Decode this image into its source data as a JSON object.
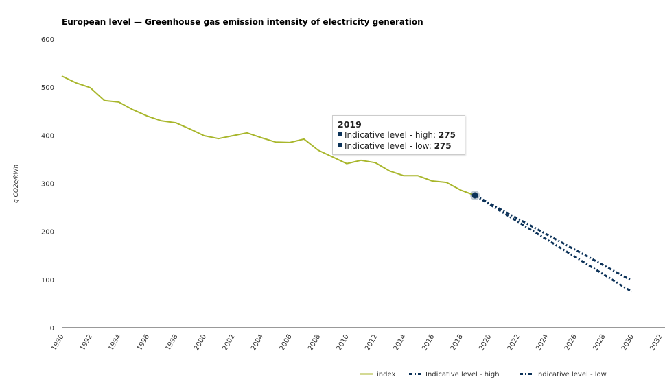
{
  "chart_data": {
    "type": "line",
    "title": "European level — Greenhouse gas emission intensity of electricity generation",
    "xlabel": "",
    "ylabel": "g CO2e/kWh",
    "xlim": [
      1990,
      2032
    ],
    "ylim": [
      0,
      600
    ],
    "y_ticks": [
      0,
      100,
      200,
      300,
      400,
      500,
      600
    ],
    "x_ticks": [
      1990,
      1992,
      1994,
      1996,
      1998,
      2000,
      2002,
      2004,
      2006,
      2008,
      2010,
      2012,
      2014,
      2016,
      2018,
      2020,
      2022,
      2024,
      2026,
      2028,
      2030,
      2032
    ],
    "grid": false,
    "legend_position": "bottom-right",
    "series": [
      {
        "name": "index",
        "color": "#a8b62b",
        "style": "solid",
        "x": [
          1990,
          1991,
          1992,
          1993,
          1994,
          1995,
          1996,
          1997,
          1998,
          1999,
          2000,
          2001,
          2002,
          2003,
          2004,
          2005,
          2006,
          2007,
          2008,
          2009,
          2010,
          2011,
          2012,
          2013,
          2014,
          2015,
          2016,
          2017,
          2018,
          2019
        ],
        "values": [
          523,
          509,
          499,
          472,
          469,
          453,
          440,
          430,
          426,
          413,
          399,
          393,
          399,
          405,
          395,
          386,
          385,
          392,
          369,
          355,
          341,
          348,
          343,
          326,
          316,
          316,
          305,
          302,
          286,
          275
        ]
      },
      {
        "name": "Indicative level - high",
        "color": "#0b3158",
        "style": "dash-dot",
        "x": [
          2019,
          2030
        ],
        "values": [
          275,
          98
        ]
      },
      {
        "name": "Indicative level - low",
        "color": "#0b3158",
        "style": "dash-dot",
        "x": [
          2019,
          2030
        ],
        "values": [
          275,
          75
        ]
      }
    ],
    "highlight_point": {
      "x": 2019,
      "y": 275,
      "color": "#0b3158"
    },
    "tooltip": {
      "header": "2019",
      "rows": [
        {
          "label": "Indicative level - high: ",
          "value": "275",
          "color": "#0b3158"
        },
        {
          "label": "Indicative level - low: ",
          "value": "275",
          "color": "#0b3158"
        }
      ]
    }
  }
}
